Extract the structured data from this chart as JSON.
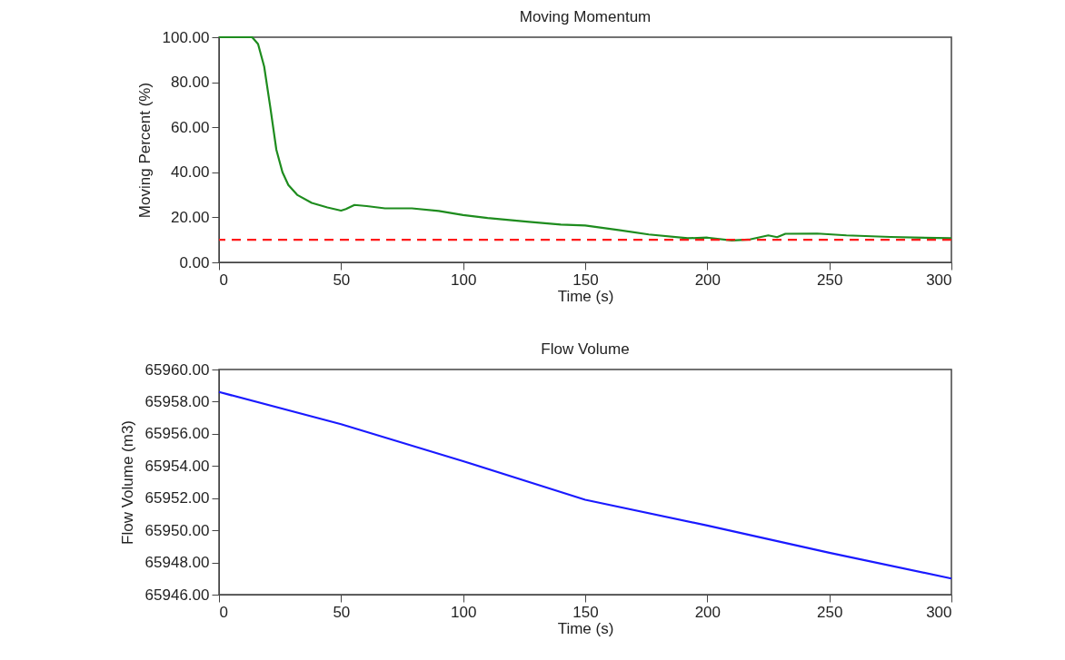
{
  "chart_data": [
    {
      "type": "line",
      "title": "Moving Momentum",
      "xlabel": "Time (s)",
      "ylabel": "Moving Percent (%)",
      "xlim": [
        0,
        300
      ],
      "xticks": [
        0,
        50,
        100,
        150,
        200,
        250,
        300
      ],
      "ylim": [
        0,
        100
      ],
      "yticks": [
        {
          "value": 0,
          "label": "0.00"
        },
        {
          "value": 20,
          "label": "20.00"
        },
        {
          "value": 40,
          "label": "40.00"
        },
        {
          "value": 60,
          "label": "60.00"
        },
        {
          "value": 80,
          "label": "80.00"
        },
        {
          "value": 100,
          "label": "100.00"
        }
      ],
      "grid": false,
      "marker": "none",
      "line_style": "solid",
      "series": [
        {
          "color": "#1e8c1e",
          "x": [
            0,
            13.6,
            16,
            18.5,
            21,
            23.5,
            26,
            28.4,
            32,
            38,
            44.4,
            50,
            52,
            55.5,
            60.5,
            68,
            79,
            90,
            100,
            110,
            127,
            140,
            150,
            163.6,
            176,
            192,
            200,
            210,
            217,
            225,
            228.6,
            232,
            245,
            257,
            275,
            300
          ],
          "values": [
            100,
            100,
            97,
            87,
            69,
            50,
            40,
            34.4,
            30,
            26.4,
            24.4,
            23,
            23.7,
            25.5,
            25,
            24,
            24,
            22.8,
            21,
            19.7,
            18,
            16.8,
            16.4,
            14.4,
            12.4,
            10.7,
            11,
            9.7,
            10.1,
            12,
            11.2,
            12.7,
            12.8,
            12,
            11.3,
            10.7
          ]
        }
      ],
      "ref_lines": [
        {
          "axis": "y",
          "value": 10,
          "color": "#ff1a1a",
          "line_style": "dashed"
        }
      ]
    },
    {
      "type": "line",
      "title": "Flow Volume",
      "xlabel": "Time (s)",
      "ylabel": "Flow Volume (m3)",
      "xlim": [
        0,
        300
      ],
      "xticks": [
        0,
        50,
        100,
        150,
        200,
        250,
        300
      ],
      "ylim": [
        65946,
        65960
      ],
      "yticks": [
        {
          "value": 65946,
          "label": "65946.00"
        },
        {
          "value": 65948,
          "label": "65948.00"
        },
        {
          "value": 65950,
          "label": "65950.00"
        },
        {
          "value": 65952,
          "label": "65952.00"
        },
        {
          "value": 65954,
          "label": "65954.00"
        },
        {
          "value": 65956,
          "label": "65956.00"
        },
        {
          "value": 65958,
          "label": "65958.00"
        },
        {
          "value": 65960,
          "label": "65960.00"
        }
      ],
      "grid": false,
      "marker": "none",
      "line_style": "solid",
      "series": [
        {
          "color": "#1a1aff",
          "x": [
            0,
            50,
            100,
            150,
            200,
            250,
            300
          ],
          "values": [
            65958.6,
            65956.6,
            65954.3,
            65951.9,
            65950.3,
            65948.6,
            65947.0
          ]
        }
      ]
    }
  ]
}
